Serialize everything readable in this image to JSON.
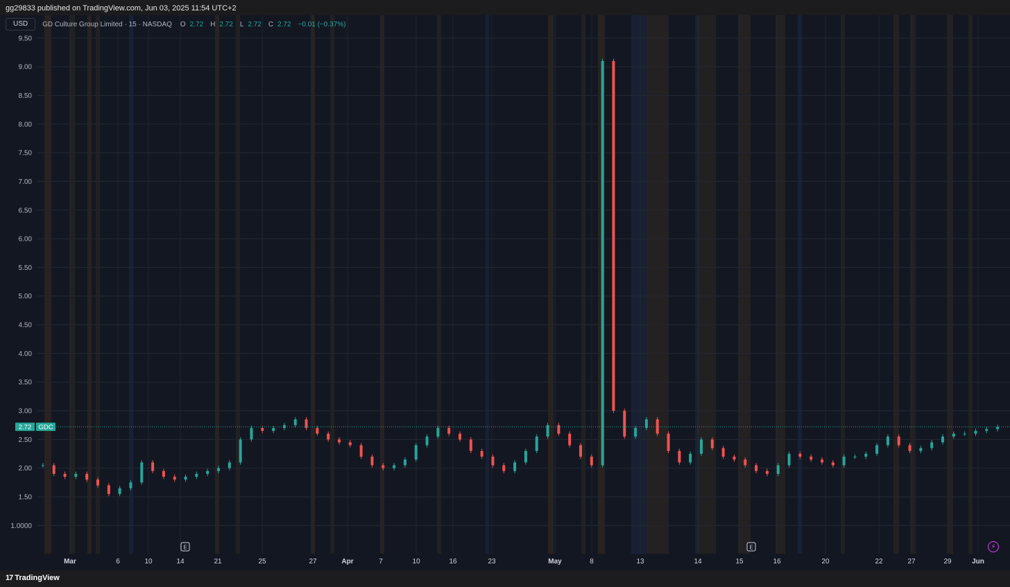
{
  "header": {
    "publisher_text": "gg29833 published on TradingView.com, Jun 03, 2025 11:54 UTC+2"
  },
  "legend": {
    "currency": "USD",
    "symbol_text": "GD Culture Group Limited · 15 · NASDAQ",
    "o_label": "O",
    "o_value": "2.72",
    "h_label": "H",
    "h_value": "2.72",
    "l_label": "L",
    "l_value": "2.72",
    "c_label": "C",
    "c_value": "2.72",
    "change": "−0.01 (−0.37%)"
  },
  "price_tag": {
    "value": "2.72",
    "ticker": "GDC"
  },
  "footer": {
    "brand": "TradingView",
    "brand_mark": "17"
  },
  "colors": {
    "up": "#26a69a",
    "down": "#ef5350",
    "background": "#131722",
    "tag": "#26a69a"
  },
  "icons": [
    "flash-icon",
    "tradingview-logo-icon",
    "earnings-marker-icon"
  ],
  "chart_data": {
    "type": "candlestick",
    "title": "GD Culture Group Limited · 15 · NASDAQ",
    "ylim": [
      0.75,
      9.8
    ],
    "y_ticks": [
      "1.0000",
      "1.50",
      "2.00",
      "2.50",
      "3.00",
      "3.50",
      "4.00",
      "4.50",
      "5.00",
      "5.50",
      "6.00",
      "6.50",
      "7.00",
      "7.50",
      "8.00",
      "8.50",
      "9.00",
      "9.50"
    ],
    "x_ticks": [
      "Mar",
      "6",
      "10",
      "14",
      "21",
      "25",
      "27",
      "Apr",
      "7",
      "10",
      "16",
      "23",
      "May",
      "8",
      "13",
      "14",
      "15",
      "16",
      "20",
      "22",
      "27",
      "29",
      "Jun"
    ],
    "earnings_markers": [
      "E",
      "E"
    ],
    "last_price": 2.72,
    "series": [
      {
        "name": "GDC",
        "values": [
          2.05,
          1.9,
          1.85,
          1.9,
          1.8,
          1.7,
          1.55,
          1.65,
          1.75,
          2.1,
          1.95,
          1.85,
          1.8,
          1.85,
          1.9,
          1.95,
          2.0,
          2.1,
          2.5,
          2.7,
          2.65,
          2.7,
          2.75,
          2.85,
          2.7,
          2.6,
          2.5,
          2.45,
          2.4,
          2.2,
          2.05,
          2.0,
          2.05,
          2.15,
          2.4,
          2.55,
          2.7,
          2.6,
          2.5,
          2.3,
          2.2,
          2.05,
          1.95,
          2.1,
          2.3,
          2.55,
          2.75,
          2.6,
          2.4,
          2.2,
          2.05,
          9.1,
          3.0,
          2.55,
          2.7,
          2.85,
          2.6,
          2.3,
          2.1,
          2.25,
          2.5,
          2.35,
          2.2,
          2.15,
          2.05,
          1.95,
          1.9,
          2.05,
          2.25,
          2.2,
          2.15,
          2.1,
          2.05,
          2.2,
          2.2,
          2.25,
          2.4,
          2.55,
          2.4,
          2.3,
          2.35,
          2.45,
          2.55,
          2.6,
          2.6,
          2.65,
          2.68,
          2.72
        ]
      }
    ]
  }
}
